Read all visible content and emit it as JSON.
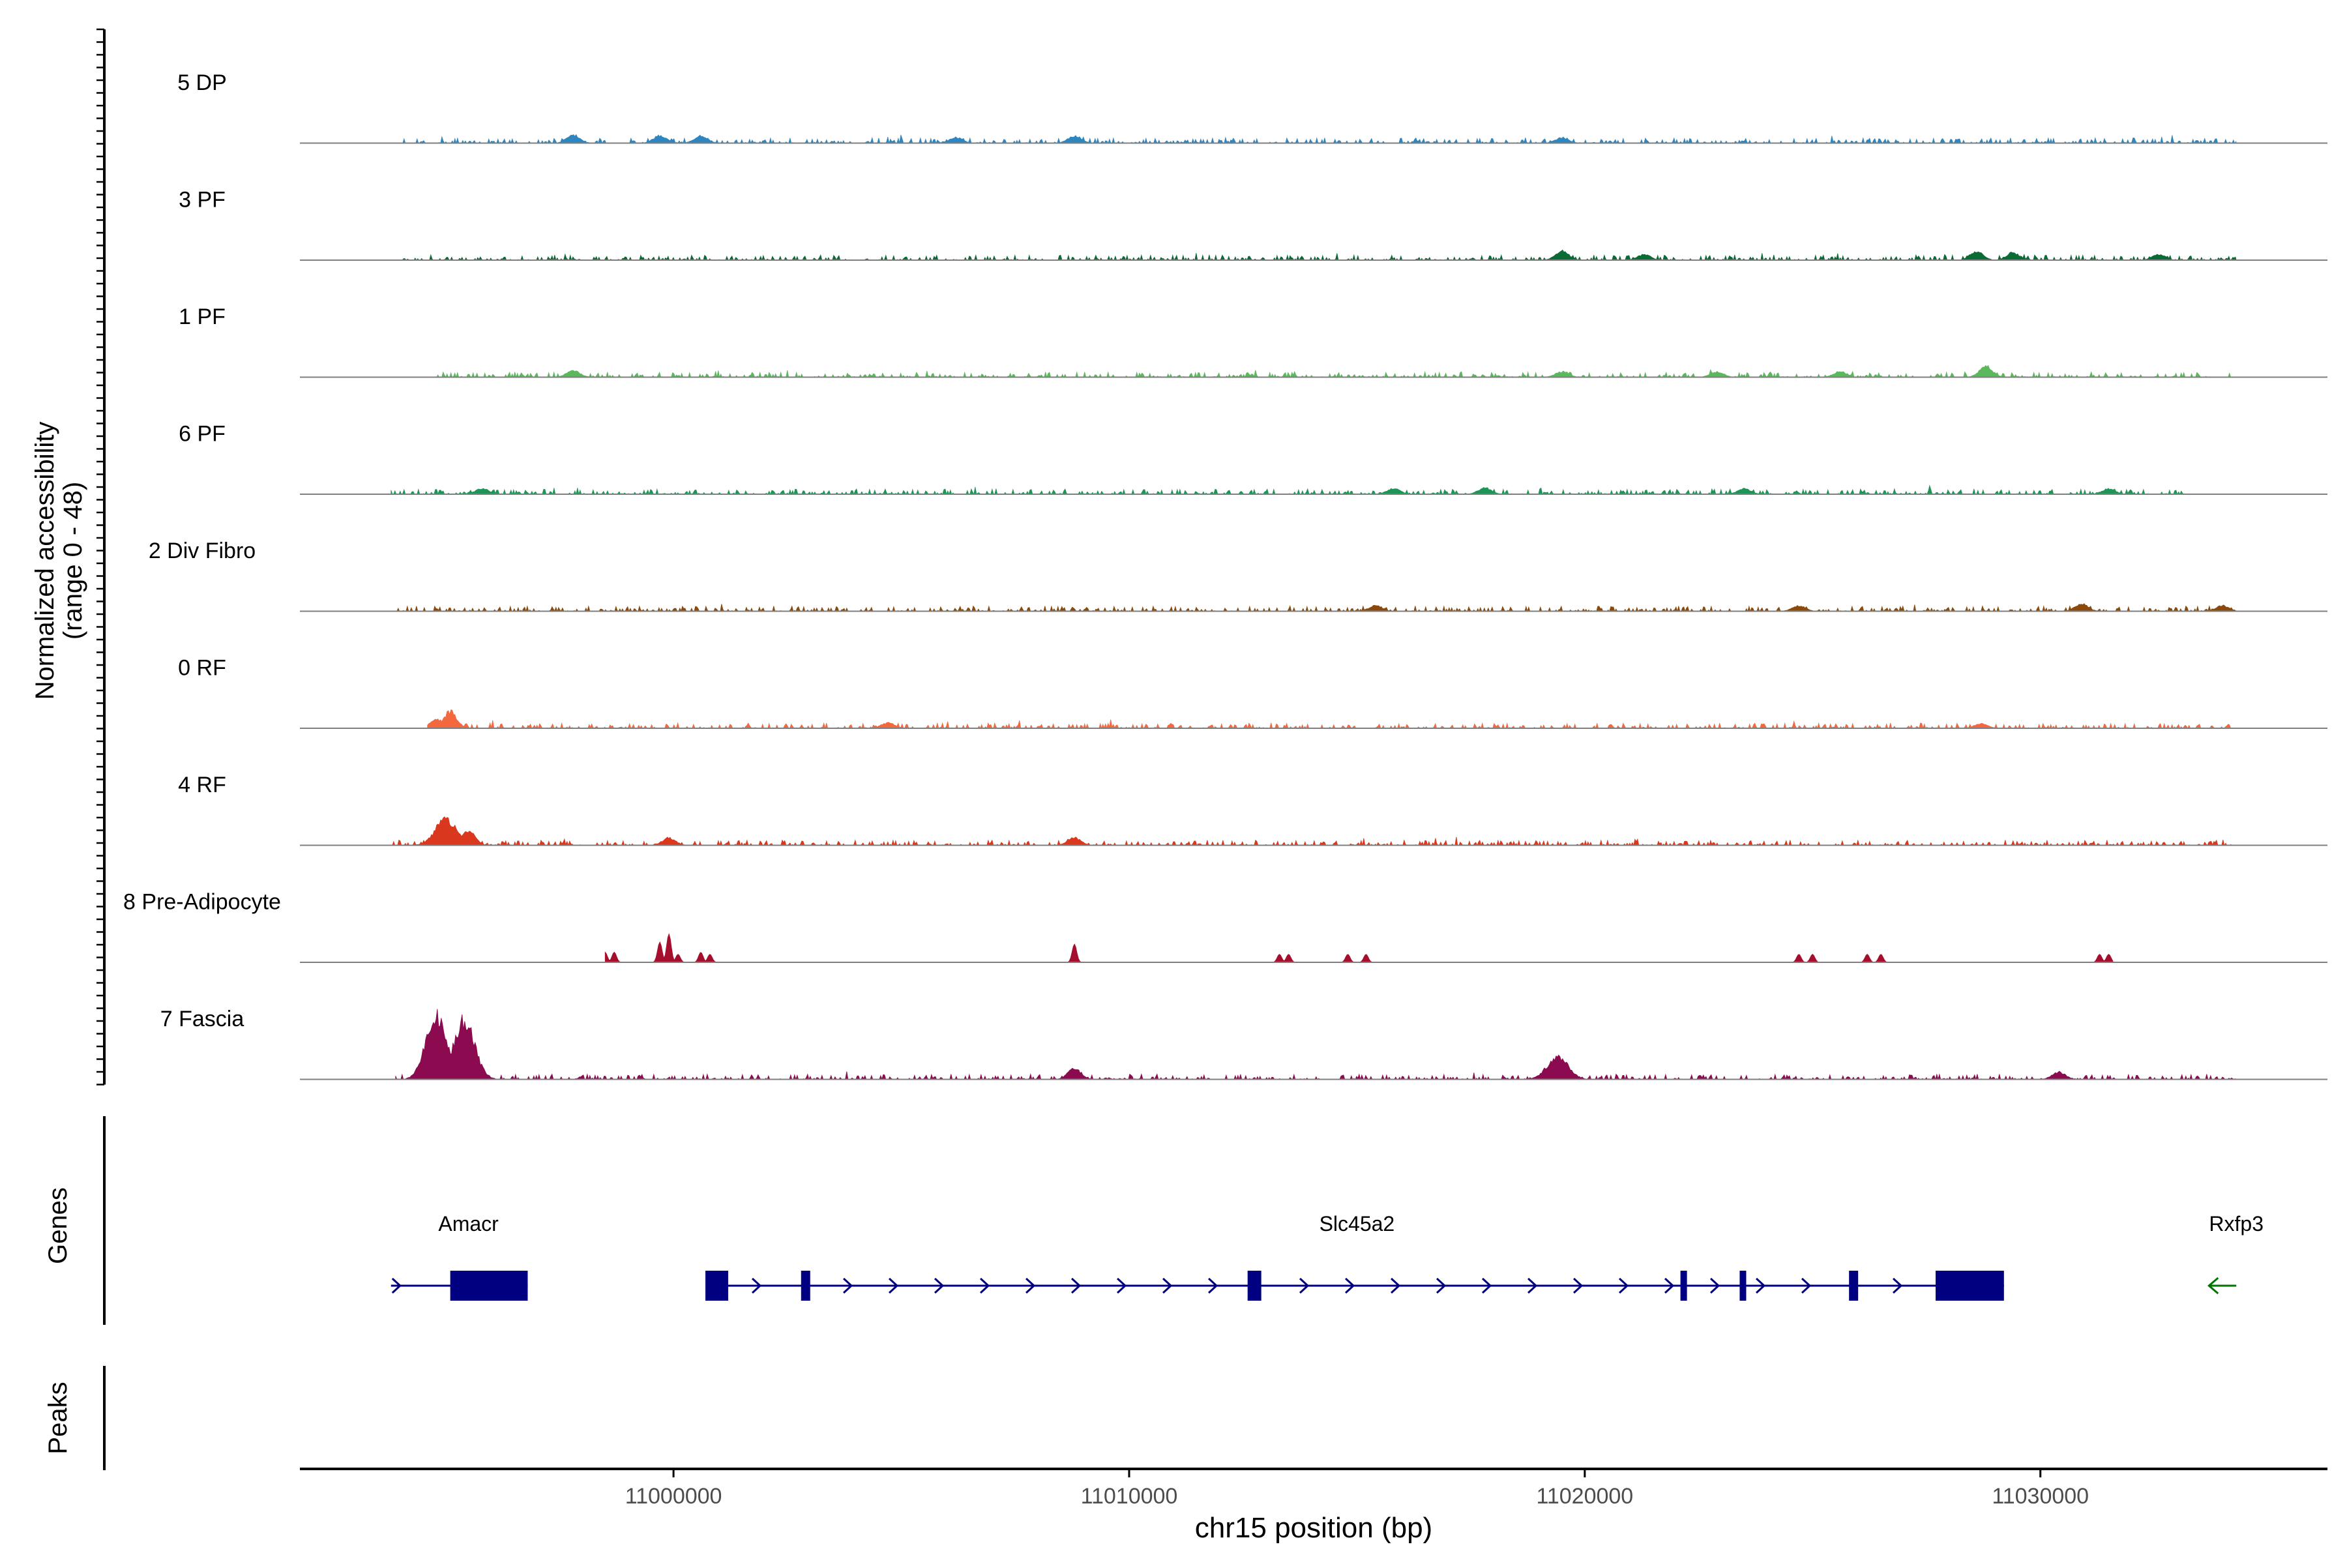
{
  "chart_data": {
    "type": "area",
    "chromosome": "chr15",
    "xlabel": "chr15 position (bp)",
    "ylabel_line1": "Normalized accessibility",
    "ylabel_line2": "(range 0 - 48)",
    "y_range": [
      0,
      48
    ],
    "x_range": [
      10991800,
      11036300
    ],
    "x_ticks": [
      11000000,
      11010000,
      11020000,
      11030000
    ],
    "x_tick_labels": [
      "11000000",
      "11010000",
      "11020000",
      "11030000"
    ],
    "track_labels": {
      "genes": "Genes",
      "peaks": "Peaks"
    },
    "tracks": [
      {
        "name": "5 DP",
        "color": "#2E86C1",
        "region": [
          10994000,
          11034300
        ],
        "peaks": [
          [
            10997800,
            4.5
          ],
          [
            10999700,
            4
          ],
          [
            11000600,
            4
          ],
          [
            11008800,
            4
          ],
          [
            11019500,
            3
          ],
          [
            11006200,
            3
          ]
        ]
      },
      {
        "name": "3 PF",
        "color": "#0B6B35",
        "region": [
          10993900,
          11034300
        ],
        "peaks": [
          [
            11019500,
            5
          ],
          [
            11021300,
            3
          ],
          [
            11028600,
            5
          ],
          [
            11029400,
            4
          ],
          [
            11032600,
            3
          ]
        ]
      },
      {
        "name": "1 PF",
        "color": "#5CB85C",
        "region": [
          10994800,
          11034200
        ],
        "peaks": [
          [
            10997800,
            3.5
          ],
          [
            11019500,
            3
          ],
          [
            11022900,
            3
          ],
          [
            11025600,
            3
          ],
          [
            11028800,
            6
          ]
        ]
      },
      {
        "name": "6 PF",
        "color": "#1E9456",
        "region": [
          10993800,
          11033200
        ],
        "peaks": [
          [
            10995800,
            3
          ],
          [
            11015800,
            3
          ],
          [
            11017800,
            3.5
          ],
          [
            11023500,
            3
          ],
          [
            11031500,
            3
          ]
        ]
      },
      {
        "name": "2 Div Fibro",
        "color": "#8B4A0B",
        "region": [
          10993900,
          11034300
        ],
        "peaks": [
          [
            11015400,
            3
          ],
          [
            11024700,
            3
          ],
          [
            11030900,
            4
          ],
          [
            11034000,
            3
          ]
        ]
      },
      {
        "name": "0 RF",
        "color": "#F4683F",
        "region": [
          10994600,
          11034200
        ],
        "peaks": [
          [
            10995100,
            9
          ],
          [
            10994800,
            5
          ],
          [
            11004700,
            3
          ],
          [
            11028700,
            2.5
          ]
        ]
      },
      {
        "name": "4 RF",
        "color": "#D9381E",
        "region": [
          10993800,
          11034200
        ],
        "peaks": [
          [
            10995000,
            14
          ],
          [
            10995500,
            8
          ],
          [
            10999900,
            4
          ],
          [
            11008800,
            4
          ]
        ]
      },
      {
        "name": "8 Pre-Adipocyte",
        "color": "#A50F2D",
        "region": [
          10998500,
          11031600
        ],
        "peaks": [
          [
            10998500,
            5
          ],
          [
            10998700,
            5
          ],
          [
            10999700,
            10
          ],
          [
            10999900,
            14
          ],
          [
            11000100,
            4
          ],
          [
            11000600,
            5
          ],
          [
            11000800,
            4
          ],
          [
            11008800,
            9
          ],
          [
            11013300,
            4
          ],
          [
            11013500,
            4
          ],
          [
            11014800,
            4
          ],
          [
            11015200,
            4
          ],
          [
            11024700,
            4
          ],
          [
            11025000,
            4
          ],
          [
            11026200,
            4
          ],
          [
            11026500,
            4
          ],
          [
            11031300,
            4
          ],
          [
            11031500,
            4
          ]
        ]
      },
      {
        "name": "7 Fascia",
        "color": "#8B0A50",
        "region": [
          10993900,
          11034300
        ],
        "peaks": [
          [
            10994800,
            34
          ],
          [
            10995400,
            32
          ],
          [
            11019400,
            12
          ],
          [
            11008800,
            6
          ],
          [
            11030400,
            4
          ]
        ]
      }
    ],
    "genes": [
      {
        "name": "Amacr",
        "strand": "+",
        "color": "#000080",
        "start": 10993800,
        "end": 10996800,
        "label_pos": 10995500,
        "exons": [
          [
            10995100,
            10996800
          ]
        ]
      },
      {
        "name": "Slc45a2",
        "strand": "+",
        "color": "#000080",
        "start": 11000700,
        "end": 11029200,
        "label_pos": 11015000,
        "exons": [
          [
            11000700,
            11001200
          ],
          [
            11002800,
            11003000
          ],
          [
            11012600,
            11012900
          ],
          [
            11022100,
            11022200
          ],
          [
            11023400,
            11023500
          ],
          [
            11025800,
            11026000
          ],
          [
            11027700,
            11029200
          ]
        ]
      },
      {
        "name": "Rxfp3",
        "strand": "-",
        "color": "#007500",
        "start": 11033700,
        "end": 11034300,
        "label_pos": 11034300,
        "exons": []
      }
    ]
  }
}
